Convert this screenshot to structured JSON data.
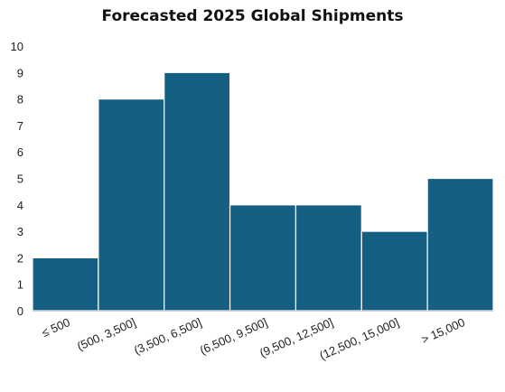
{
  "colors": {
    "bar": "#155f82",
    "bar_edge": "#ffffff",
    "axis": "#d0d0d0"
  },
  "chart_data": {
    "type": "bar",
    "title": "Forecasted 2025 Global Shipments",
    "xlabel": "",
    "ylabel": "",
    "categories": [
      "≤ 500",
      "(500, 3,500]",
      "(3,500, 6,500]",
      "(6,500, 9,500]",
      "(9,500, 12,500]",
      "(12,500, 15,000]",
      "> 15,000"
    ],
    "values": [
      2,
      8,
      9,
      4,
      4,
      3,
      5
    ],
    "ylim": [
      0,
      10
    ],
    "yticks": [
      "0",
      "1",
      "2",
      "3",
      "4",
      "5",
      "6",
      "7",
      "8",
      "9",
      "10"
    ],
    "grid": false,
    "legend": "none"
  }
}
